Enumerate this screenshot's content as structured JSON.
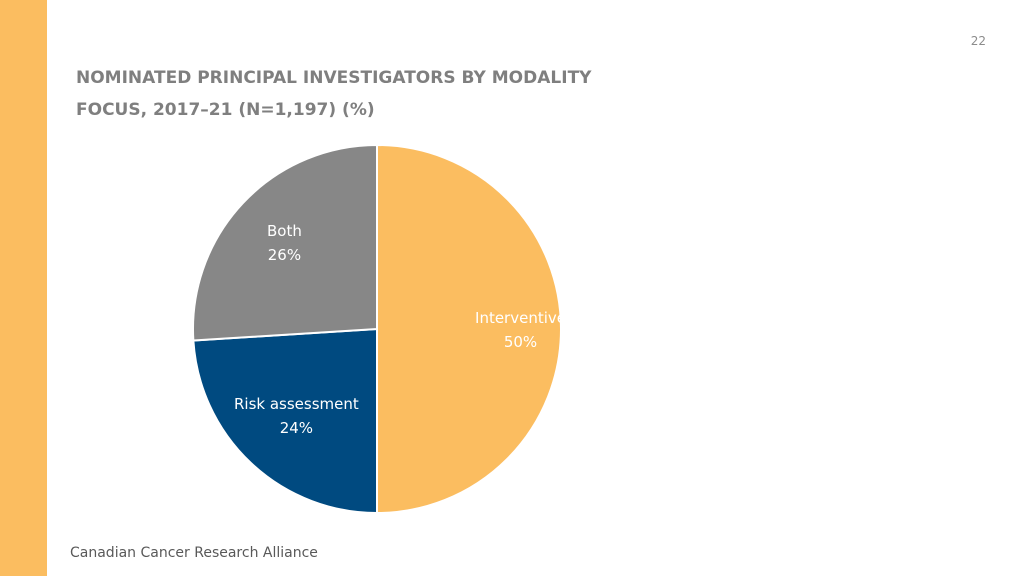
{
  "page_number": "22",
  "title_line1": "NOMINATED PRINCIPAL INVESTIGATORS BY MODALITY",
  "title_line2": "FOCUS, 2017–21 (N=1,197) (%)",
  "footer": "Canadian Cancer Research Alliance",
  "colors": {
    "accent": "#fbbd60",
    "interventive": "#fbbd60",
    "risk_assessment": "#004a80",
    "both": "#878787"
  },
  "chart_data": {
    "type": "pie",
    "title": "NOMINATED PRINCIPAL INVESTIGATORS BY MODALITY FOCUS, 2017–21 (N=1,197) (%)",
    "categories": [
      "Interventive",
      "Risk assessment",
      "Both"
    ],
    "values": [
      50,
      24,
      26
    ],
    "value_labels": [
      "50%",
      "24%",
      "26%"
    ],
    "start_angle_deg": 0,
    "direction": "clockwise",
    "legend": "none"
  }
}
